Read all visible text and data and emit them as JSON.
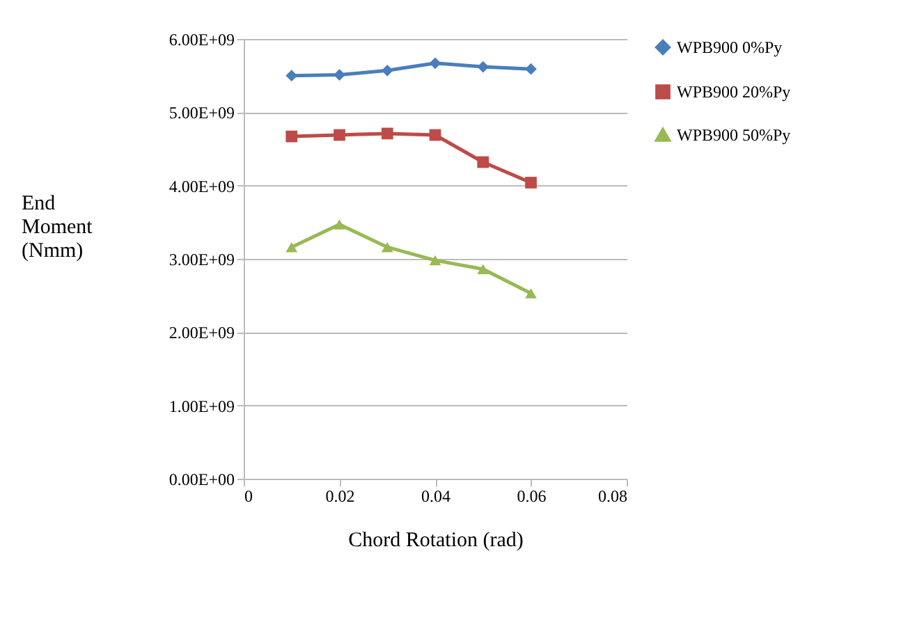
{
  "chart_data": {
    "type": "line",
    "xlabel": "Chord Rotation (rad)",
    "ylabel": "End Moment (Nmm)",
    "x": [
      0.01,
      0.02,
      0.03,
      0.04,
      0.05,
      0.06
    ],
    "series": [
      {
        "name": "WPB900 0%Py",
        "color": "#4a7ebb",
        "marker": "diamond",
        "values": [
          5500000000.0,
          5510000000.0,
          5570000000.0,
          5670000000.0,
          5620000000.0,
          5590000000.0
        ]
      },
      {
        "name": "WPB900 20%Py",
        "color": "#be4b48",
        "marker": "square",
        "values": [
          4670000000.0,
          4690000000.0,
          4710000000.0,
          4690000000.0,
          4320000000.0,
          4040000000.0
        ]
      },
      {
        "name": "WPB900 50%Py",
        "color": "#98b954",
        "marker": "triangle",
        "values": [
          3160000000.0,
          3470000000.0,
          3160000000.0,
          2980000000.0,
          2860000000.0,
          2530000000.0
        ]
      }
    ],
    "xlim": [
      0,
      0.08
    ],
    "xticks": [
      0,
      0.02,
      0.04,
      0.06,
      0.08
    ],
    "ylim": [
      0,
      6000000000.0
    ],
    "yticks": [
      {
        "value": 0,
        "label": "0.00E+00"
      },
      {
        "value": 1000000000.0,
        "label": "1.00E+09"
      },
      {
        "value": 2000000000.0,
        "label": "2.00E+09"
      },
      {
        "value": 3000000000.0,
        "label": "3.00E+09"
      },
      {
        "value": 4000000000.0,
        "label": "4.00E+09"
      },
      {
        "value": 5000000000.0,
        "label": "5.00E+09"
      },
      {
        "value": 6000000000.0,
        "label": "6.00E+09"
      }
    ],
    "grid": "y",
    "legend": "right",
    "line_style": "solid"
  }
}
